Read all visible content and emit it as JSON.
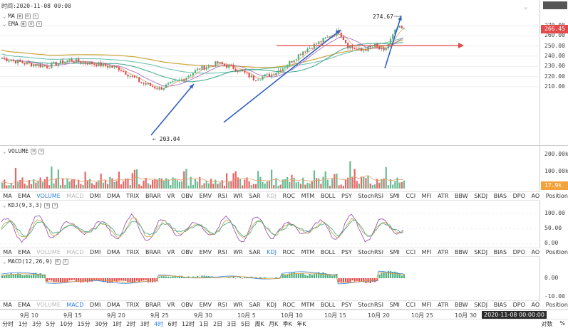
{
  "header": {
    "timestamp": "时间:2020-11-08 00:00"
  },
  "main_pane": {
    "legend_ma": "MA",
    "legend_ema": "EMA",
    "price_ticks": [
      "270.00",
      "260.00",
      "250.00",
      "240.00",
      "230.00",
      "220.00",
      "210.00"
    ],
    "price_tick_values": [
      270,
      260,
      250,
      240,
      230,
      220,
      210
    ],
    "current_price": "266.45",
    "current_price_value": 266.45,
    "high_label": "274.67",
    "high_value": 274.67,
    "low_label": "203.04",
    "low_value": 203.04,
    "up_color": "#4caf7d",
    "down_color": "#e34a4a"
  },
  "volume_pane": {
    "legend": "VOLUME",
    "ticks": [
      "200.00k",
      "100.00k"
    ],
    "tick_values": [
      200,
      100
    ],
    "current_value": "17.9k"
  },
  "kdj_pane": {
    "legend": "KDJ(9,3,3)",
    "ticks": [
      "100.00",
      "50.00",
      "0.00"
    ],
    "tick_values": [
      100,
      50,
      0
    ]
  },
  "macd_pane": {
    "legend": "MACD(12,26,9)",
    "ticks": [
      "0.00",
      "-10.00"
    ],
    "tick_values": [
      0,
      -10
    ]
  },
  "indicator_tabs": [
    "MA",
    "EMA",
    "VOLUME",
    "MACD",
    "DMI",
    "DMA",
    "TRIX",
    "BRAR",
    "VR",
    "OBV",
    "EMV",
    "RSI",
    "WR",
    "SAR",
    "KDJ",
    "ROC",
    "MTM",
    "BOLL",
    "PSY",
    "StochRSI",
    "SMI",
    "CCI",
    "MFI",
    "ATR",
    "BBW",
    "SKDJ",
    "BIAS",
    "DPO",
    "AO",
    "Position"
  ],
  "date_axis": {
    "labels": [
      "9月 10",
      "9月 15",
      "9月 20",
      "9月 25",
      "9月 30",
      "10月 5",
      "10月 10",
      "10月 15",
      "10月 20",
      "10月 25",
      "10月 30"
    ],
    "current": "2020-11-08 00:00:00"
  },
  "timeframes": [
    "分时",
    "1分",
    "3分",
    "5分",
    "10分",
    "15分",
    "30分",
    "1时",
    "2时",
    "3时",
    "4时",
    "6时",
    "12时",
    "1日",
    "2日",
    "3日",
    "5日",
    "周K",
    "月K",
    "季K",
    "年K"
  ],
  "active_timeframe": "4时",
  "bottom_right": {
    "log_label": "对数",
    "percent_label": "%"
  }
}
